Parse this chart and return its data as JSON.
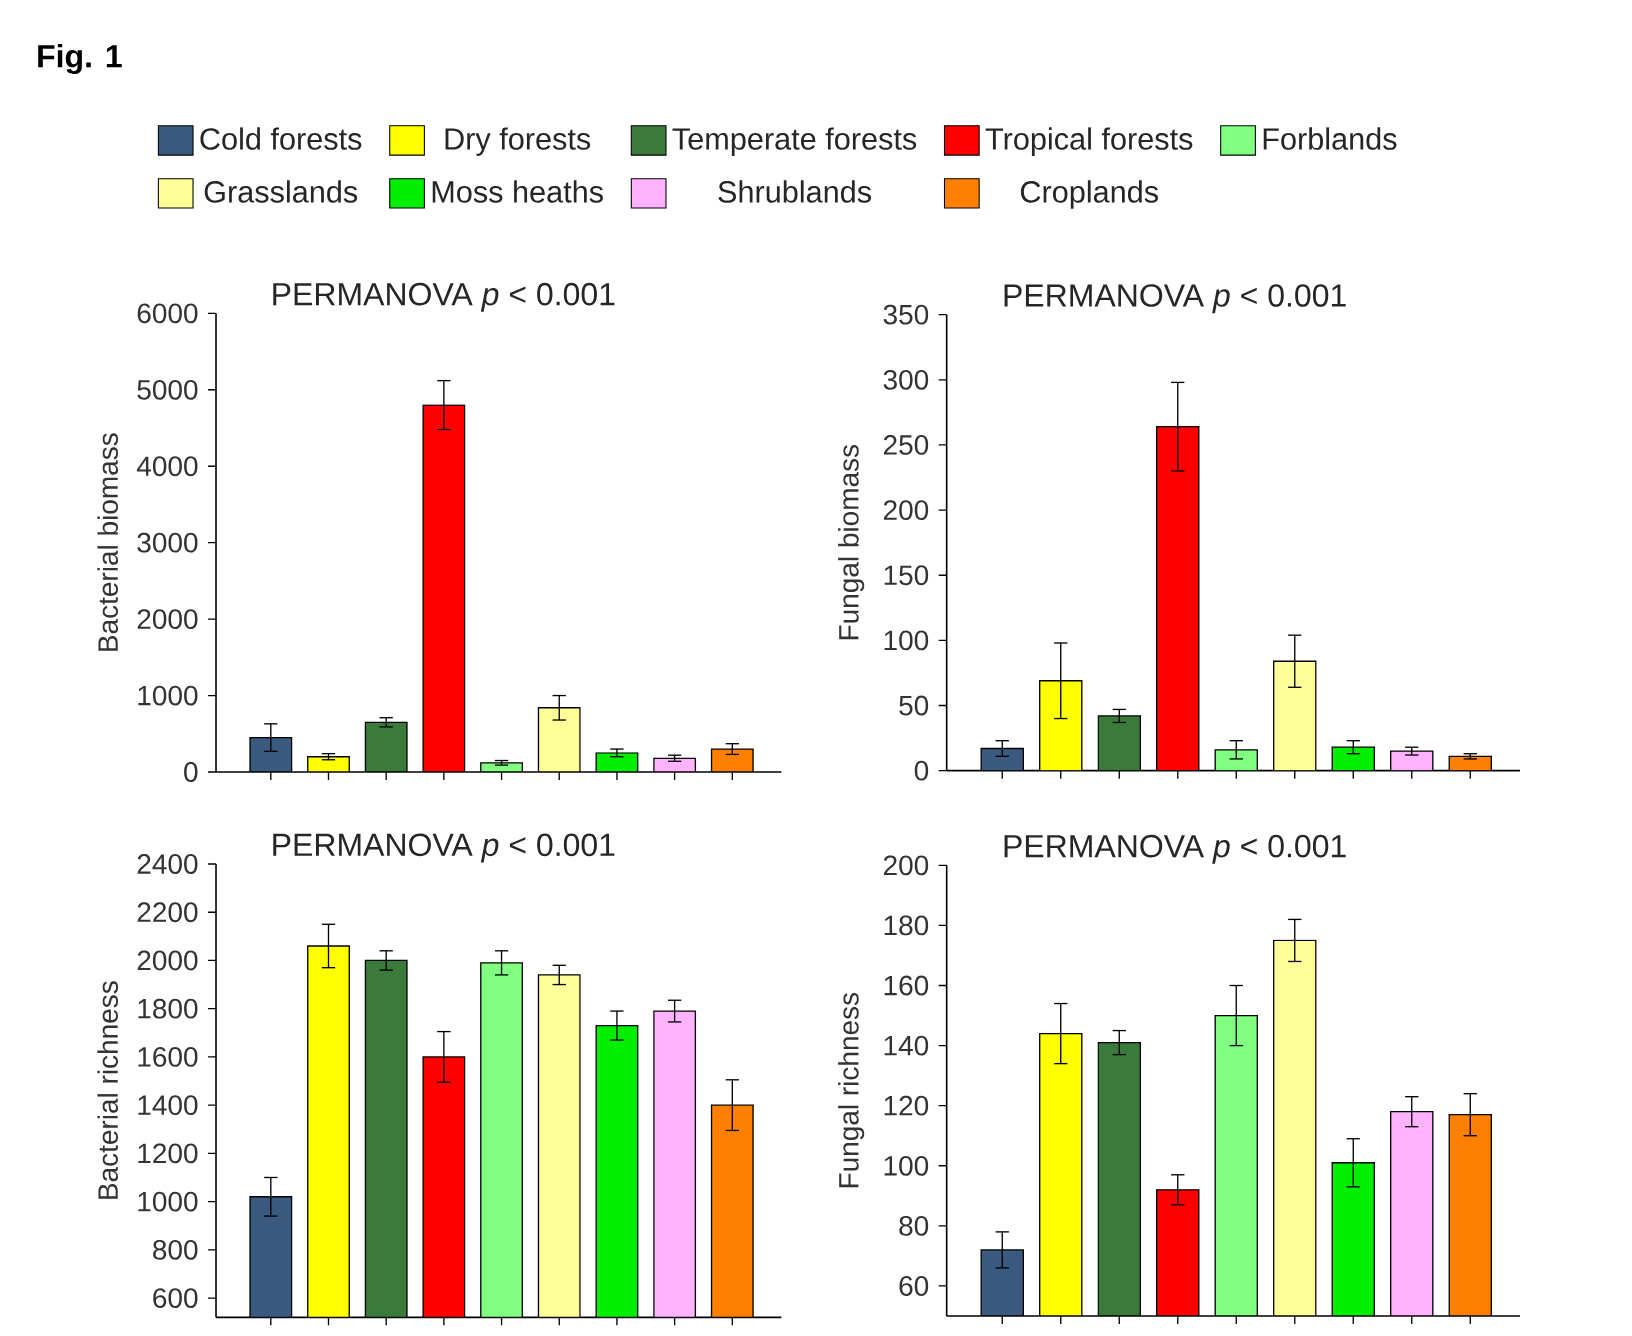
{
  "chart_data": [
    {
      "type": "bar",
      "annotations": [
        "Fig. 1"
      ],
      "title": "PERMANOVA *p* < 0.001",
      "ylabel": "Bacterial biomass",
      "categories": [
        null,
        null,
        null,
        null,
        null,
        null,
        null,
        null,
        null
      ],
      "legend": "top",
      "tick_labels": "y",
      "ylim": [
        0,
        6000
      ],
      "yticks": [
        0,
        1000,
        2000,
        3000,
        4000,
        5000,
        6000
      ],
      "series": [
        {
          "name": "Cold forests",
          "color": "#3b5a80",
          "values": [
            450,
            null,
            null,
            null,
            null,
            null,
            null,
            null,
            null
          ],
          "errors": [
            180,
            null,
            null,
            null,
            null,
            null,
            null,
            null,
            null
          ]
        },
        {
          "name": "Dry forests",
          "color": "#ffff00",
          "values": [
            null,
            200,
            null,
            null,
            null,
            null,
            null,
            null,
            null
          ],
          "errors": [
            null,
            40,
            null,
            null,
            null,
            null,
            null,
            null,
            null
          ]
        },
        {
          "name": "Temperate forests",
          "color": "#3a7a3a",
          "values": [
            null,
            null,
            650,
            null,
            null,
            null,
            null,
            null,
            null
          ],
          "errors": [
            null,
            null,
            60,
            null,
            null,
            null,
            null,
            null,
            null
          ]
        },
        {
          "name": "Tropical forests",
          "color": "#ff0000",
          "values": [
            null,
            null,
            null,
            4800,
            null,
            null,
            null,
            null,
            null
          ],
          "errors": [
            null,
            null,
            null,
            320,
            null,
            null,
            null,
            null,
            null
          ]
        },
        {
          "name": "Forblands",
          "color": "#80ff80",
          "values": [
            null,
            null,
            null,
            null,
            120,
            null,
            null,
            null,
            null
          ],
          "errors": [
            null,
            null,
            null,
            null,
            30,
            null,
            null,
            null,
            null
          ]
        },
        {
          "name": "Grasslands",
          "color": "#ffff99",
          "values": [
            null,
            null,
            null,
            null,
            null,
            840,
            null,
            null,
            null
          ],
          "errors": [
            null,
            null,
            null,
            null,
            null,
            160,
            null,
            null,
            null
          ]
        },
        {
          "name": "Moss heaths",
          "color": "#00ee00",
          "values": [
            null,
            null,
            null,
            null,
            null,
            null,
            250,
            null,
            null
          ],
          "errors": [
            null,
            null,
            null,
            null,
            null,
            null,
            50,
            null,
            null
          ]
        },
        {
          "name": "Shrublands",
          "color": "#ffb3ff",
          "values": [
            null,
            null,
            null,
            null,
            null,
            null,
            null,
            180,
            null
          ],
          "errors": [
            null,
            null,
            null,
            null,
            null,
            null,
            null,
            40,
            null
          ]
        },
        {
          "name": "Croplands",
          "color": "#ff8000",
          "values": [
            null,
            null,
            null,
            null,
            null,
            null,
            null,
            null,
            300
          ],
          "errors": [
            null,
            null,
            null,
            null,
            null,
            null,
            null,
            null,
            70
          ]
        }
      ]
    },
    {
      "type": "bar",
      "title": "PERMANOVA *p* < 0.001",
      "ylabel": "Fungal biomass",
      "categories": [
        null,
        null,
        null,
        null,
        null,
        null,
        null,
        null,
        null
      ],
      "tick_labels": "y",
      "ylim": [
        0,
        350
      ],
      "yticks": [
        0,
        50,
        100,
        150,
        200,
        250,
        300,
        350
      ],
      "values": [
        17,
        69,
        42,
        264,
        16,
        84,
        18,
        15,
        11
      ],
      "errors": [
        6,
        29,
        5,
        34,
        7,
        20,
        5,
        3,
        2
      ],
      "colors": [
        "#3b5a80",
        "#ffff00",
        "#3a7a3a",
        "#ff0000",
        "#80ff80",
        "#ffff99",
        "#00ee00",
        "#ffb3ff",
        "#ff8000"
      ]
    },
    {
      "type": "bar",
      "title": "PERMANOVA *p* < 0.001",
      "ylabel": "Bacterial richness",
      "categories": [
        null,
        null,
        null,
        null,
        null,
        null,
        null,
        null,
        null
      ],
      "tick_labels": "y",
      "ylim": [
        520,
        2400
      ],
      "yticks": [
        600,
        800,
        1000,
        1200,
        1400,
        1600,
        1800,
        2000,
        2200,
        2400
      ],
      "values": [
        1020,
        2060,
        2000,
        1600,
        1990,
        1940,
        1730,
        1790,
        1400
      ],
      "errors": [
        80,
        90,
        40,
        105,
        50,
        40,
        60,
        45,
        105
      ],
      "colors": [
        "#3b5a80",
        "#ffff00",
        "#3a7a3a",
        "#ff0000",
        "#80ff80",
        "#ffff99",
        "#00ee00",
        "#ffb3ff",
        "#ff8000"
      ]
    },
    {
      "type": "bar",
      "title": "PERMANOVA *p* < 0.001",
      "ylabel": "Fungal richness",
      "categories": [
        null,
        null,
        null,
        null,
        null,
        null,
        null,
        null,
        null
      ],
      "tick_labels": "y",
      "ylim": [
        50,
        200
      ],
      "yticks": [
        60,
        80,
        100,
        120,
        140,
        160,
        180,
        200
      ],
      "values": [
        72,
        144,
        141,
        92,
        150,
        175,
        101,
        118,
        117
      ],
      "errors": [
        6,
        10,
        4,
        5,
        10,
        7,
        8,
        5,
        7
      ],
      "colors": [
        "#3b5a80",
        "#ffff00",
        "#3a7a3a",
        "#ff0000",
        "#80ff80",
        "#ffff99",
        "#00ee00",
        "#ffb3ff",
        "#ff8000"
      ]
    }
  ]
}
